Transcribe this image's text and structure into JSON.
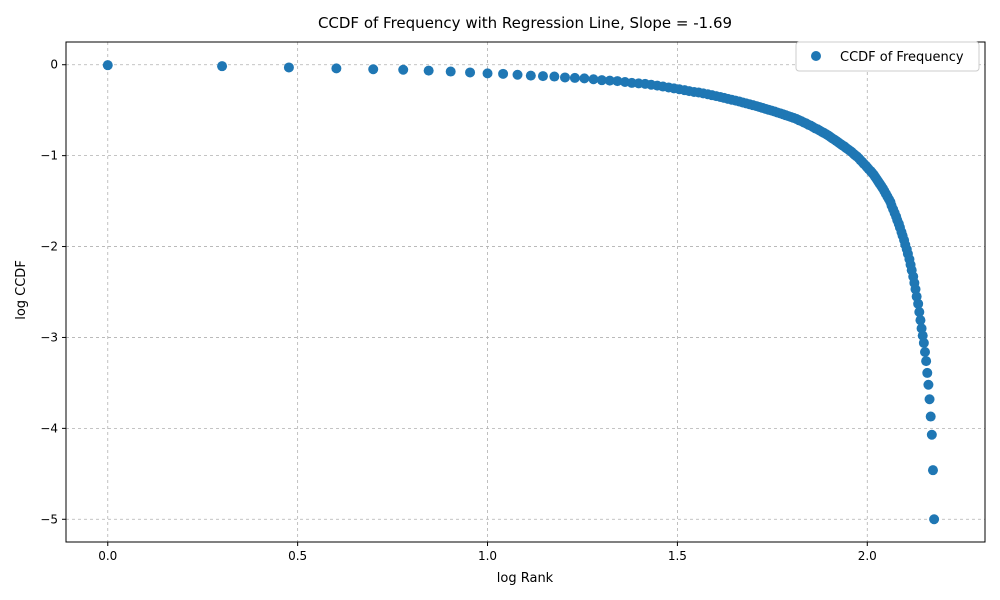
{
  "chart_data": {
    "type": "scatter",
    "title": "CCDF of Frequency with Regression Line, Slope = -1.69",
    "xlabel": "log Rank",
    "ylabel": "log CCDF",
    "xlim": [
      -0.11,
      2.31
    ],
    "ylim": [
      -5.25,
      0.25
    ],
    "xticks": [
      0.0,
      0.5,
      1.0,
      1.5,
      2.0
    ],
    "xtick_labels": [
      "0.0",
      "0.5",
      "1.0",
      "1.5",
      "2.0"
    ],
    "yticks": [
      0,
      -1,
      -2,
      -3,
      -4,
      -5
    ],
    "ytick_labels": [
      "0",
      "−1",
      "−2",
      "−3",
      "−4",
      "−5"
    ],
    "grid": true,
    "legend_position": "top-right",
    "legend": [
      "CCDF of Frequency"
    ],
    "marker_color": "#1f77b4",
    "series": [
      {
        "name": "CCDF of Frequency",
        "points": [
          [
            0.0,
            -0.005
          ],
          [
            0.301,
            -0.016
          ],
          [
            0.477,
            -0.03
          ],
          [
            0.602,
            -0.04
          ],
          [
            0.699,
            -0.05
          ],
          [
            0.778,
            -0.055
          ],
          [
            0.845,
            -0.065
          ],
          [
            0.903,
            -0.075
          ],
          [
            0.954,
            -0.085
          ],
          [
            1.0,
            -0.095
          ],
          [
            1.041,
            -0.1
          ],
          [
            1.079,
            -0.11
          ],
          [
            1.114,
            -0.12
          ],
          [
            1.146,
            -0.125
          ],
          [
            1.176,
            -0.13
          ],
          [
            1.204,
            -0.14
          ],
          [
            1.23,
            -0.145
          ],
          [
            1.255,
            -0.15
          ],
          [
            1.279,
            -0.16
          ],
          [
            1.301,
            -0.17
          ],
          [
            1.322,
            -0.175
          ],
          [
            1.342,
            -0.18
          ],
          [
            1.362,
            -0.19
          ],
          [
            1.38,
            -0.2
          ],
          [
            1.398,
            -0.205
          ],
          [
            1.415,
            -0.21
          ],
          [
            1.431,
            -0.22
          ],
          [
            1.447,
            -0.23
          ],
          [
            1.462,
            -0.24
          ],
          [
            1.477,
            -0.25
          ],
          [
            1.491,
            -0.26
          ],
          [
            1.505,
            -0.27
          ],
          [
            1.519,
            -0.28
          ],
          [
            1.531,
            -0.29
          ],
          [
            1.544,
            -0.3
          ],
          [
            1.556,
            -0.305
          ],
          [
            1.568,
            -0.315
          ],
          [
            1.58,
            -0.325
          ],
          [
            1.591,
            -0.335
          ],
          [
            1.602,
            -0.345
          ],
          [
            1.613,
            -0.355
          ],
          [
            1.623,
            -0.365
          ],
          [
            1.633,
            -0.375
          ],
          [
            1.643,
            -0.385
          ],
          [
            1.653,
            -0.395
          ],
          [
            1.663,
            -0.405
          ],
          [
            1.672,
            -0.415
          ],
          [
            1.681,
            -0.425
          ],
          [
            1.69,
            -0.435
          ],
          [
            1.699,
            -0.445
          ],
          [
            1.708,
            -0.455
          ],
          [
            1.716,
            -0.465
          ],
          [
            1.724,
            -0.475
          ],
          [
            1.732,
            -0.485
          ],
          [
            1.74,
            -0.495
          ],
          [
            1.748,
            -0.505
          ],
          [
            1.756,
            -0.515
          ],
          [
            1.763,
            -0.525
          ],
          [
            1.771,
            -0.535
          ],
          [
            1.778,
            -0.545
          ],
          [
            1.785,
            -0.555
          ],
          [
            1.792,
            -0.565
          ],
          [
            1.799,
            -0.575
          ],
          [
            1.806,
            -0.585
          ],
          [
            1.813,
            -0.595
          ],
          [
            1.82,
            -0.61
          ],
          [
            1.826,
            -0.62
          ],
          [
            1.833,
            -0.635
          ],
          [
            1.839,
            -0.645
          ],
          [
            1.845,
            -0.66
          ],
          [
            1.851,
            -0.67
          ],
          [
            1.857,
            -0.685
          ],
          [
            1.863,
            -0.7
          ],
          [
            1.869,
            -0.71
          ],
          [
            1.875,
            -0.725
          ],
          [
            1.881,
            -0.74
          ],
          [
            1.886,
            -0.75
          ],
          [
            1.892,
            -0.765
          ],
          [
            1.898,
            -0.78
          ],
          [
            1.903,
            -0.795
          ],
          [
            1.908,
            -0.81
          ],
          [
            1.914,
            -0.825
          ],
          [
            1.919,
            -0.84
          ],
          [
            1.924,
            -0.855
          ],
          [
            1.929,
            -0.87
          ],
          [
            1.934,
            -0.885
          ],
          [
            1.94,
            -0.9
          ],
          [
            1.944,
            -0.915
          ],
          [
            1.949,
            -0.93
          ],
          [
            1.954,
            -0.945
          ],
          [
            1.959,
            -0.96
          ],
          [
            1.964,
            -0.98
          ],
          [
            1.968,
            -0.995
          ],
          [
            1.973,
            -1.01
          ],
          [
            1.978,
            -1.03
          ],
          [
            1.982,
            -1.05
          ],
          [
            1.987,
            -1.07
          ],
          [
            1.991,
            -1.09
          ],
          [
            1.996,
            -1.11
          ],
          [
            2.0,
            -1.13
          ],
          [
            2.004,
            -1.15
          ],
          [
            2.009,
            -1.17
          ],
          [
            2.013,
            -1.19
          ],
          [
            2.017,
            -1.21
          ],
          [
            2.021,
            -1.235
          ],
          [
            2.025,
            -1.26
          ],
          [
            2.029,
            -1.285
          ],
          [
            2.033,
            -1.31
          ],
          [
            2.037,
            -1.335
          ],
          [
            2.041,
            -1.36
          ],
          [
            2.045,
            -1.39
          ],
          [
            2.049,
            -1.42
          ],
          [
            2.053,
            -1.45
          ],
          [
            2.057,
            -1.48
          ],
          [
            2.061,
            -1.51
          ],
          [
            2.064,
            -1.55
          ],
          [
            2.068,
            -1.59
          ],
          [
            2.072,
            -1.63
          ],
          [
            2.076,
            -1.67
          ],
          [
            2.079,
            -1.71
          ],
          [
            2.083,
            -1.75
          ],
          [
            2.086,
            -1.79
          ],
          [
            2.09,
            -1.84
          ],
          [
            2.093,
            -1.88
          ],
          [
            2.097,
            -1.93
          ],
          [
            2.1,
            -1.98
          ],
          [
            2.104,
            -2.03
          ],
          [
            2.107,
            -2.08
          ],
          [
            2.111,
            -2.14
          ],
          [
            2.114,
            -2.2
          ],
          [
            2.117,
            -2.26
          ],
          [
            2.121,
            -2.33
          ],
          [
            2.124,
            -2.4
          ],
          [
            2.127,
            -2.47
          ],
          [
            2.13,
            -2.55
          ],
          [
            2.134,
            -2.63
          ],
          [
            2.137,
            -2.72
          ],
          [
            2.14,
            -2.81
          ],
          [
            2.143,
            -2.9
          ],
          [
            2.146,
            -2.98
          ],
          [
            2.149,
            -3.06
          ],
          [
            2.152,
            -3.16
          ],
          [
            2.155,
            -3.26
          ],
          [
            2.158,
            -3.39
          ],
          [
            2.161,
            -3.52
          ],
          [
            2.164,
            -3.68
          ],
          [
            2.167,
            -3.87
          ],
          [
            2.17,
            -4.07
          ],
          [
            2.173,
            -4.46
          ],
          [
            2.176,
            -5.0
          ]
        ]
      }
    ]
  }
}
